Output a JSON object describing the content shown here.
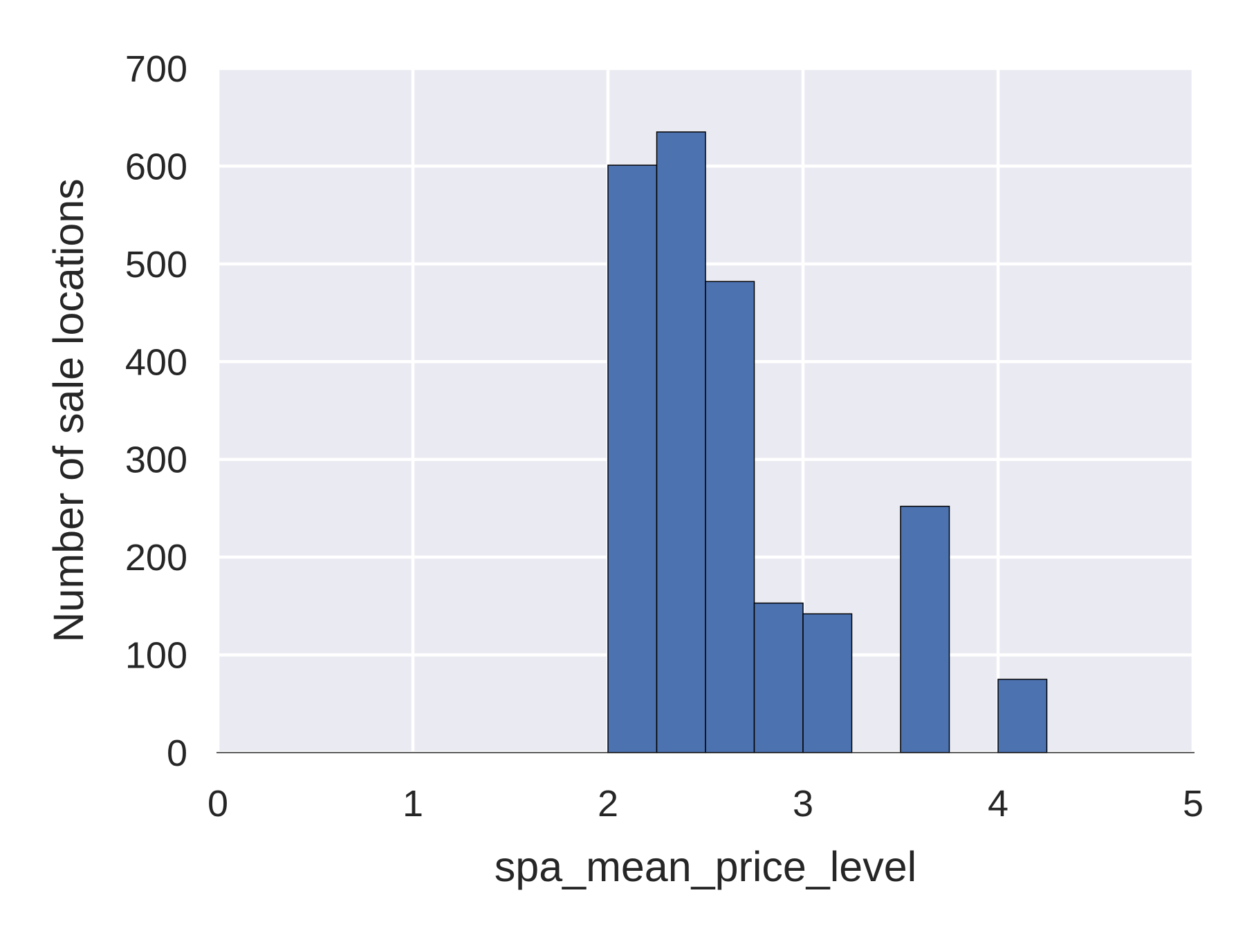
{
  "chart_data": {
    "type": "bar",
    "title": "",
    "xlabel": "spa_mean_price_level",
    "ylabel": "Number of sale locations",
    "xlim": [
      0,
      5
    ],
    "ylim": [
      0,
      700
    ],
    "x_ticks": [
      "0",
      "1",
      "2",
      "3",
      "4",
      "5"
    ],
    "y_ticks": [
      "0",
      "100",
      "200",
      "300",
      "400",
      "500",
      "600",
      "700"
    ],
    "grid": true,
    "bin_width": 0.25,
    "bins": [
      {
        "x0": 0.0,
        "x1": 0.25,
        "value": 0
      },
      {
        "x0": 0.25,
        "x1": 0.5,
        "value": 0
      },
      {
        "x0": 0.5,
        "x1": 0.75,
        "value": 0
      },
      {
        "x0": 0.75,
        "x1": 1.0,
        "value": 0
      },
      {
        "x0": 1.0,
        "x1": 1.25,
        "value": 0
      },
      {
        "x0": 1.25,
        "x1": 1.5,
        "value": 0
      },
      {
        "x0": 1.5,
        "x1": 1.75,
        "value": 0
      },
      {
        "x0": 1.75,
        "x1": 2.0,
        "value": 0
      },
      {
        "x0": 2.0,
        "x1": 2.25,
        "value": 601
      },
      {
        "x0": 2.25,
        "x1": 2.5,
        "value": 635
      },
      {
        "x0": 2.5,
        "x1": 2.75,
        "value": 482
      },
      {
        "x0": 2.75,
        "x1": 3.0,
        "value": 153
      },
      {
        "x0": 3.0,
        "x1": 3.25,
        "value": 142
      },
      {
        "x0": 3.25,
        "x1": 3.5,
        "value": 0
      },
      {
        "x0": 3.5,
        "x1": 3.75,
        "value": 252
      },
      {
        "x0": 3.75,
        "x1": 4.0,
        "value": 0
      },
      {
        "x0": 4.0,
        "x1": 4.25,
        "value": 75
      }
    ],
    "colors": {
      "bar": "#4c72b0",
      "background": "#eaeaf2",
      "grid": "#ffffff",
      "text": "#262626"
    }
  }
}
